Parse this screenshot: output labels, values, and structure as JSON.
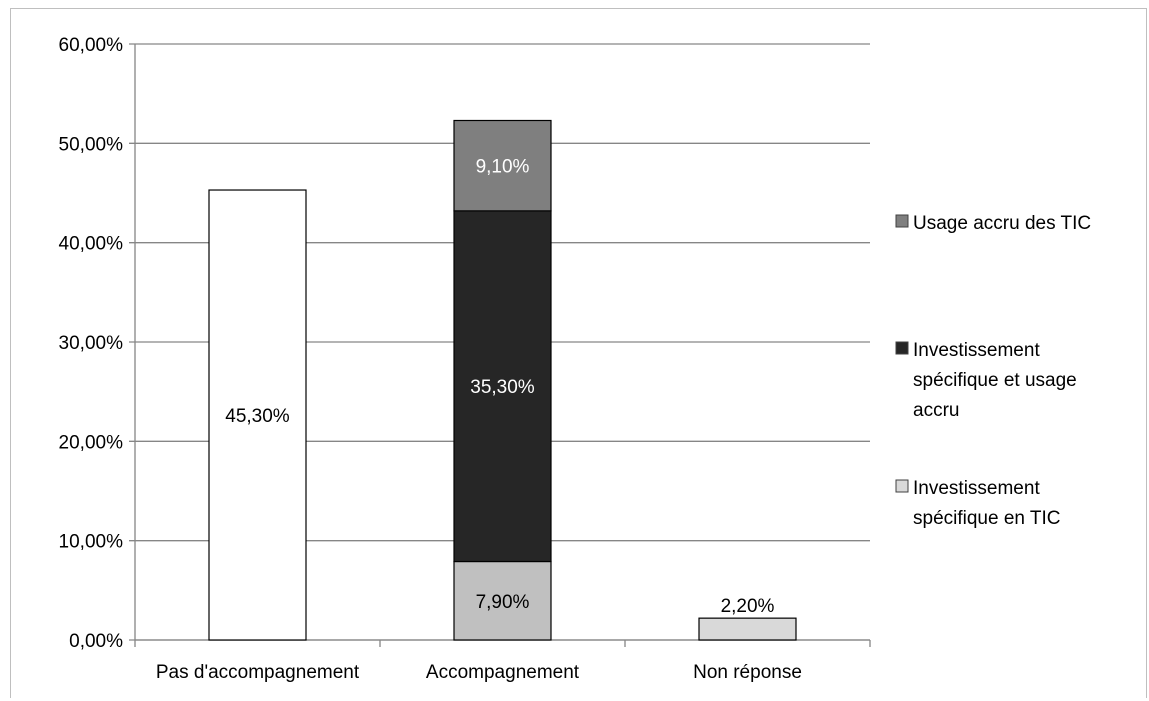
{
  "chart_data": {
    "type": "bar",
    "stacked": true,
    "categories": [
      "Pas d'accompagnement",
      "Accompagnement",
      "Non réponse"
    ],
    "ylim": [
      0,
      60
    ],
    "yticks": [
      "0,00%",
      "10,00%",
      "20,00%",
      "30,00%",
      "40,00%",
      "50,00%",
      "60,00%"
    ],
    "grid": true,
    "legend_position": "right",
    "bars": [
      {
        "category": "Pas d'accompagnement",
        "segments": [
          {
            "value": 45.3,
            "label": "45,30%",
            "color": "#ffffff",
            "label_color": "#000000"
          }
        ]
      },
      {
        "category": "Accompagnement",
        "segments": [
          {
            "series": "Investissement spécifique en TIC",
            "value": 7.9,
            "label": "7,90%",
            "color": "#c0c0c0",
            "label_color": "#000000"
          },
          {
            "series": "Investissement spécifique et usage accru",
            "value": 35.3,
            "label": "35,30%",
            "color": "#262626",
            "label_color": "#ffffff"
          },
          {
            "series": "Usage accru des TIC",
            "value": 9.1,
            "label": "9,10%",
            "color": "#7f7f7f",
            "label_color": "#ffffff"
          }
        ]
      },
      {
        "category": "Non réponse",
        "segments": [
          {
            "series": "Investissement spécifique en TIC",
            "value": 2.2,
            "label": "2,20%",
            "color": "#d9d9d9",
            "label_color": "#000000",
            "label_above": true
          }
        ]
      }
    ],
    "legend": [
      {
        "lines": [
          "Usage accru des TIC"
        ],
        "color": "#7f7f7f"
      },
      {
        "lines": [
          "Investissement",
          "spécifique et usage",
          "accru"
        ],
        "color": "#262626"
      },
      {
        "lines": [
          "Investissement",
          "spécifique en TIC"
        ],
        "color": "#d9d9d9"
      }
    ]
  }
}
